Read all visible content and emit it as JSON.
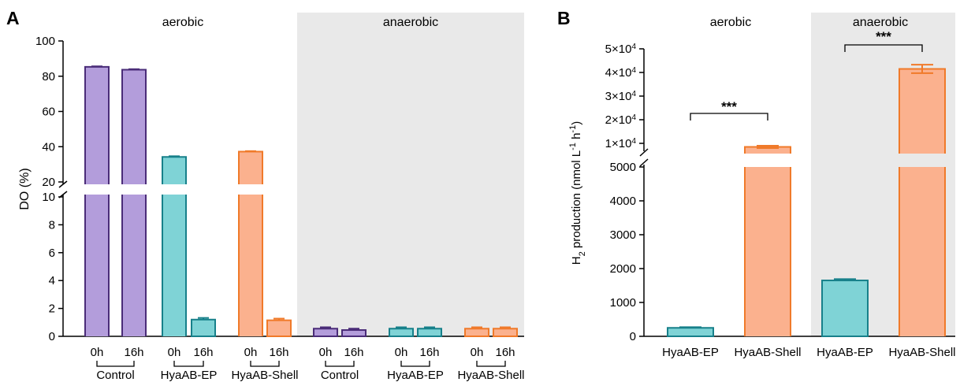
{
  "panels": [
    {
      "letter": "A"
    },
    {
      "letter": "B"
    }
  ],
  "chart_data": [
    {
      "type": "bar",
      "panel": "A",
      "ylabel": "DO (%)",
      "axis_break": {
        "lower_range": [
          0,
          10
        ],
        "upper_range": [
          20,
          100
        ]
      },
      "yticks_lower": [
        "0",
        "2",
        "4",
        "6",
        "8",
        "10"
      ],
      "yticks_upper": [
        "20",
        "40",
        "60",
        "80",
        "100"
      ],
      "condition_labels": [
        "aerobic",
        "anaerobic"
      ],
      "categories": [
        "0h",
        "16h",
        "0h",
        "16h",
        "0h",
        "16h",
        "0h",
        "16h",
        "0h",
        "16h",
        "0h",
        "16h"
      ],
      "group_labels": [
        "Control",
        "HyaAB-EP",
        "HyaAB-Shell",
        "Control",
        "HyaAB-EP",
        "HyaAB-Shell"
      ],
      "values": [
        85.3,
        83.7,
        34.2,
        1.2,
        37.2,
        1.15,
        0.55,
        0.45,
        0.55,
        0.55,
        0.55,
        0.55
      ],
      "errors": [
        0.3,
        0.3,
        0.4,
        0.12,
        0.3,
        0.12,
        0.1,
        0.1,
        0.1,
        0.1,
        0.1,
        0.1
      ],
      "colors": {
        "Control": {
          "fill": "#b39ddb",
          "stroke": "#4a2c78"
        },
        "HyaAB-EP": {
          "fill": "#7fd3d6",
          "stroke": "#17808a"
        },
        "HyaAB-Shell": {
          "fill": "#fbb18e",
          "stroke": "#f07a2a"
        },
        "anaerobic_background": "#e9e9e9"
      }
    },
    {
      "type": "bar",
      "panel": "B",
      "ylabel_main": "H",
      "ylabel_sub": "2",
      "ylabel_rest": " production (nmol L",
      "ylabel_sup1": "-1",
      "ylabel_h": " h",
      "ylabel_sup2": "-1",
      "ylabel_end": ")",
      "axis_break": {
        "lower_range": [
          0,
          5000
        ],
        "upper_range": [
          10000,
          50000
        ]
      },
      "yticks_lower": [
        "0",
        "1000",
        "2000",
        "3000",
        "4000",
        "5000"
      ],
      "yticks_upper": [
        {
          "base": "1×10",
          "exp": "4"
        },
        {
          "base": "2×10",
          "exp": "4"
        },
        {
          "base": "3×10",
          "exp": "4"
        },
        {
          "base": "4×10",
          "exp": "4"
        },
        {
          "base": "5×10",
          "exp": "4"
        }
      ],
      "condition_labels": [
        "aerobic",
        "anaerobic"
      ],
      "categories": [
        "HyaAB-EP",
        "HyaAB-Shell",
        "HyaAB-EP",
        "HyaAB-Shell"
      ],
      "values": [
        250,
        8500,
        1650,
        41500
      ],
      "errors": [
        20,
        500,
        40,
        1800
      ],
      "significance": [
        "***",
        "***"
      ],
      "colors": {
        "HyaAB-EP": {
          "fill": "#7fd3d6",
          "stroke": "#17808a"
        },
        "HyaAB-Shell": {
          "fill": "#fbb18e",
          "stroke": "#f07a2a"
        },
        "anaerobic_background": "#e9e9e9"
      }
    }
  ]
}
